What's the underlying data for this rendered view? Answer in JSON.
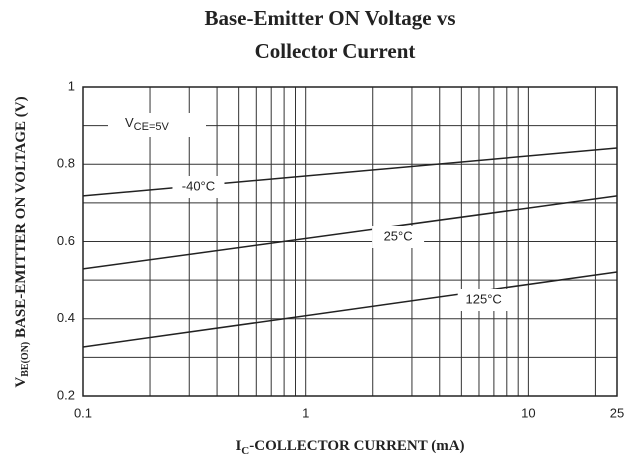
{
  "chart_data": {
    "type": "line",
    "title": [
      "Base-Emitter ON Voltage vs",
      "Collector Current"
    ],
    "y_label": {
      "sym": "V",
      "sub": "BE(ON)",
      "text": " BASE-EMITTER ON VOLTAGE (V)"
    },
    "x_label": {
      "sym": "I",
      "sub": "C",
      "text": "-COLLECTOR CURRENT (mA)"
    },
    "condition": {
      "sym": "V",
      "sub": "CE=5V"
    },
    "x_log": true,
    "xlim": [
      0.1,
      25
    ],
    "xticks": [
      0.1,
      1,
      10,
      25
    ],
    "xminor": [
      0.2,
      0.3,
      0.4,
      0.5,
      0.6,
      0.7,
      0.8,
      0.9,
      2,
      3,
      4,
      5,
      6,
      7,
      8,
      9,
      20
    ],
    "ylim": [
      0.2,
      1
    ],
    "yticks": [
      0.2,
      0.4,
      0.6,
      0.8,
      1
    ],
    "yminor": [
      0.3,
      0.5,
      0.7,
      0.9
    ],
    "grid": true,
    "x": [
      0.1,
      25
    ],
    "series": [
      {
        "name": "-40°C",
        "color": "#222222",
        "values": [
          0.718,
          0.842
        ]
      },
      {
        "name": "25°C",
        "color": "#222222",
        "values": [
          0.529,
          0.718
        ]
      },
      {
        "name": "125°C",
        "color": "#222222",
        "values": [
          0.327,
          0.521
        ]
      }
    ]
  }
}
